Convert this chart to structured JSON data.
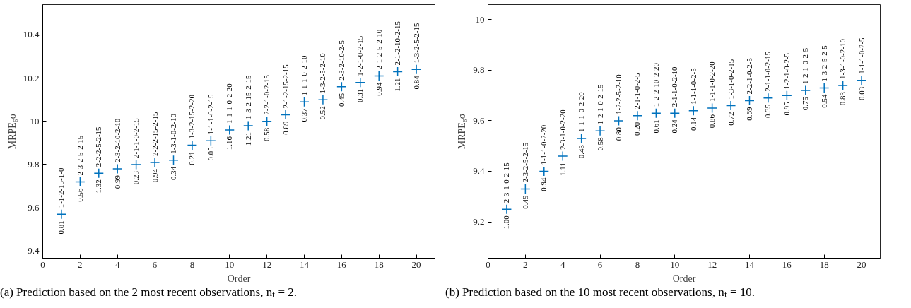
{
  "chart_data": [
    {
      "type": "scatter",
      "xlabel": "Order",
      "ylabel": "MRPE₆σ",
      "marker": "cross",
      "grid": false,
      "x": [
        1,
        2,
        3,
        4,
        5,
        6,
        7,
        8,
        9,
        10,
        11,
        12,
        13,
        14,
        15,
        16,
        17,
        18,
        19,
        20
      ],
      "series": [
        {
          "color": "#0072bd",
          "values": [
            9.57,
            9.72,
            9.76,
            9.78,
            9.8,
            9.81,
            9.82,
            9.89,
            9.91,
            9.96,
            9.98,
            10.0,
            10.03,
            10.09,
            10.1,
            10.16,
            10.18,
            10.21,
            10.23,
            10.24
          ]
        }
      ],
      "xlim": [
        0,
        21
      ],
      "xticks": [
        0,
        2,
        4,
        6,
        8,
        10,
        12,
        14,
        16,
        18,
        20
      ],
      "ylim": [
        9.367,
        10.54
      ],
      "yticks": [
        9.4,
        9.6,
        9.8,
        10,
        10.2,
        10.4
      ],
      "annotations": [
        {
          "text": "0.81",
          "x": 1,
          "y": 9.57
        },
        {
          "text": "1-1-2-15-1-0",
          "x": 1,
          "y": 9.57
        },
        {
          "text": "0.56",
          "x": 2,
          "y": 9.72
        },
        {
          "text": "2-3-2-5-2-15",
          "x": 2,
          "y": 9.72
        },
        {
          "text": "1.32",
          "x": 3,
          "y": 9.76
        },
        {
          "text": "2-2-2-5-2-15",
          "x": 3,
          "y": 9.76
        },
        {
          "text": "0.99",
          "x": 4,
          "y": 9.78
        },
        {
          "text": "2-3-2-10-2-10",
          "x": 4,
          "y": 9.78
        },
        {
          "text": "0.23",
          "x": 5,
          "y": 9.8
        },
        {
          "text": "2-1-1-0-2-15",
          "x": 5,
          "y": 9.8
        },
        {
          "text": "0.94",
          "x": 6,
          "y": 9.81
        },
        {
          "text": "2-2-2-15-2-15",
          "x": 6,
          "y": 9.81
        },
        {
          "text": "0.34",
          "x": 7,
          "y": 9.82
        },
        {
          "text": "1-3-1-0-2-10",
          "x": 7,
          "y": 9.82
        },
        {
          "text": "0.21",
          "x": 8,
          "y": 9.89
        },
        {
          "text": "1-3-2-15-2-20",
          "x": 8,
          "y": 9.89
        },
        {
          "text": "0.05",
          "x": 9,
          "y": 9.91
        },
        {
          "text": "1-1-1-0-2-15",
          "x": 9,
          "y": 9.91
        },
        {
          "text": "1.16",
          "x": 10,
          "y": 9.96
        },
        {
          "text": "1-1-1-0-2-20",
          "x": 10,
          "y": 9.96
        },
        {
          "text": "1.21",
          "x": 11,
          "y": 9.98
        },
        {
          "text": "1-3-2-15-2-15",
          "x": 11,
          "y": 9.98
        },
        {
          "text": "0.58",
          "x": 12,
          "y": 10.0
        },
        {
          "text": "2-2-1-0-2-15",
          "x": 12,
          "y": 10.0
        },
        {
          "text": "0.89",
          "x": 13,
          "y": 10.03
        },
        {
          "text": "2-1-2-15-2-15",
          "x": 13,
          "y": 10.03
        },
        {
          "text": "0.37",
          "x": 14,
          "y": 10.09
        },
        {
          "text": "1-1-1-0-2-10",
          "x": 14,
          "y": 10.09
        },
        {
          "text": "0.52",
          "x": 15,
          "y": 10.1
        },
        {
          "text": "1-3-2-5-2-10",
          "x": 15,
          "y": 10.1
        },
        {
          "text": "0.45",
          "x": 16,
          "y": 10.16
        },
        {
          "text": "2-3-2-10-2-5",
          "x": 16,
          "y": 10.16
        },
        {
          "text": "0.31",
          "x": 17,
          "y": 10.18
        },
        {
          "text": "1-2-1-0-2-15",
          "x": 17,
          "y": 10.18
        },
        {
          "text": "0.94",
          "x": 18,
          "y": 10.21
        },
        {
          "text": "2-1-2-5-2-10",
          "x": 18,
          "y": 10.21
        },
        {
          "text": "1.21",
          "x": 19,
          "y": 10.23
        },
        {
          "text": "2-1-2-10-2-15",
          "x": 19,
          "y": 10.23
        },
        {
          "text": "0.84",
          "x": 20,
          "y": 10.24
        },
        {
          "text": "1-3-2-5-2-15",
          "x": 20,
          "y": 10.24
        },
        "(a) Prediction based on the 2 most recent observations, nₜ = 2."
      ]
    },
    {
      "type": "scatter",
      "xlabel": "Order",
      "ylabel": "MRPE₆σ",
      "marker": "cross",
      "grid": false,
      "x": [
        1,
        2,
        3,
        4,
        5,
        6,
        7,
        8,
        9,
        10,
        11,
        12,
        13,
        14,
        15,
        16,
        17,
        18,
        19,
        20
      ],
      "series": [
        {
          "color": "#0072bd",
          "values": [
            9.25,
            9.33,
            9.4,
            9.46,
            9.53,
            9.56,
            9.6,
            9.62,
            9.63,
            9.63,
            9.64,
            9.65,
            9.66,
            9.68,
            9.69,
            9.7,
            9.72,
            9.73,
            9.74,
            9.76
          ]
        }
      ],
      "xlim": [
        0,
        21
      ],
      "xticks": [
        0,
        2,
        4,
        6,
        8,
        10,
        12,
        14,
        16,
        18,
        20
      ],
      "ylim": [
        9.056,
        10.06
      ],
      "yticks": [
        9.2,
        9.4,
        9.6,
        9.8,
        10
      ],
      "annotations": [
        {
          "text": "1.00",
          "x": 1,
          "y": 9.25
        },
        {
          "text": "2-3-1-0-2-15",
          "x": 1,
          "y": 9.25
        },
        {
          "text": "0.49",
          "x": 2,
          "y": 9.33
        },
        {
          "text": "2-3-2-5-2-15",
          "x": 2,
          "y": 9.33
        },
        {
          "text": "0.94",
          "x": 3,
          "y": 9.4
        },
        {
          "text": "1-1-1-0-2-20",
          "x": 3,
          "y": 9.4
        },
        {
          "text": "1.11",
          "x": 4,
          "y": 9.46
        },
        {
          "text": "2-3-1-0-2-20",
          "x": 4,
          "y": 9.46
        },
        {
          "text": "0.43",
          "x": 5,
          "y": 9.53
        },
        {
          "text": "1-1-1-0-2-20",
          "x": 5,
          "y": 9.53
        },
        {
          "text": "0.58",
          "x": 6,
          "y": 9.56
        },
        {
          "text": "1-2-1-0-2-15",
          "x": 6,
          "y": 9.56
        },
        {
          "text": "0.80",
          "x": 7,
          "y": 9.6
        },
        {
          "text": "1-2-2-5-2-10",
          "x": 7,
          "y": 9.6
        },
        {
          "text": "0.20",
          "x": 8,
          "y": 9.62
        },
        {
          "text": "2-1-1-0-2-5",
          "x": 8,
          "y": 9.62
        },
        {
          "text": "0.61",
          "x": 9,
          "y": 9.63
        },
        {
          "text": "1-2-2-10-2-20",
          "x": 9,
          "y": 9.63
        },
        {
          "text": "0.24",
          "x": 10,
          "y": 9.63
        },
        {
          "text": "2-1-1-0-2-10",
          "x": 10,
          "y": 9.63
        },
        {
          "text": "0.14",
          "x": 11,
          "y": 9.64
        },
        {
          "text": "1-1-1-0-2-5",
          "x": 11,
          "y": 9.64
        },
        {
          "text": "0.86",
          "x": 12,
          "y": 9.65
        },
        {
          "text": "1-1-1-0-2-20",
          "x": 12,
          "y": 9.65
        },
        {
          "text": "0.72",
          "x": 13,
          "y": 9.66
        },
        {
          "text": "1-3-1-0-2-15",
          "x": 13,
          "y": 9.66
        },
        {
          "text": "0.69",
          "x": 14,
          "y": 9.68
        },
        {
          "text": "2-2-1-0-2-5",
          "x": 14,
          "y": 9.68
        },
        {
          "text": "0.35",
          "x": 15,
          "y": 9.69
        },
        {
          "text": "2-1-1-0-2-15",
          "x": 15,
          "y": 9.69
        },
        {
          "text": "0.95",
          "x": 16,
          "y": 9.7
        },
        {
          "text": "1-2-1-0-2-5",
          "x": 16,
          "y": 9.7
        },
        {
          "text": "0.75",
          "x": 17,
          "y": 9.72
        },
        {
          "text": "1-2-1-0-2-5",
          "x": 17,
          "y": 9.72
        },
        {
          "text": "0.54",
          "x": 18,
          "y": 9.73
        },
        {
          "text": "1-3-2-5-2-5",
          "x": 18,
          "y": 9.73
        },
        {
          "text": "0.83",
          "x": 19,
          "y": 9.74
        },
        {
          "text": "1-3-1-0-2-10",
          "x": 19,
          "y": 9.74
        },
        {
          "text": "0.03",
          "x": 20,
          "y": 9.76
        },
        {
          "text": "1-1-1-0-2-5",
          "x": 20,
          "y": 9.76
        },
        "(b) Prediction based on the 10 most recent observations, nₜ = 10."
      ]
    }
  ]
}
